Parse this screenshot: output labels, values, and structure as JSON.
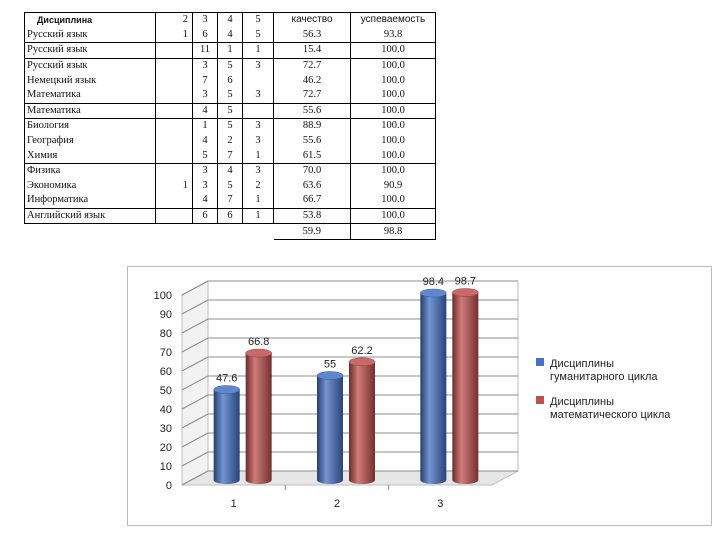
{
  "table": {
    "headers": {
      "discipline": "Дисциплина",
      "g2": "2",
      "g3": "3",
      "g4": "4",
      "g5": "5",
      "quality": "качество",
      "performance": "успеваемость"
    },
    "rows": [
      {
        "name": "Русский язык",
        "g2": "1",
        "g3": "6",
        "g4": "4",
        "g5": "5",
        "quality": "56.3",
        "performance": "93.8"
      },
      {
        "name": "Русский язык",
        "g2": "",
        "g3": "11",
        "g4": "1",
        "g5": "1",
        "quality": "15.4",
        "performance": "100.0"
      },
      {
        "name": "Русский язык",
        "g2": "",
        "g3": "3",
        "g4": "5",
        "g5": "3",
        "quality": "72.7",
        "performance": "100.0"
      },
      {
        "name": "Немецкий язык",
        "g2": "",
        "g3": "7",
        "g4": "6",
        "g5": "",
        "quality": "46.2",
        "performance": "100.0"
      },
      {
        "name": "Математика",
        "g2": "",
        "g3": "3",
        "g4": "5",
        "g5": "3",
        "quality": "72.7",
        "performance": "100.0"
      },
      {
        "name": "Математика",
        "g2": "",
        "g3": "4",
        "g4": "5",
        "g5": "",
        "quality": "55.6",
        "performance": "100.0"
      },
      {
        "name": "Биология",
        "g2": "",
        "g3": "1",
        "g4": "5",
        "g5": "3",
        "quality": "88.9",
        "performance": "100.0"
      },
      {
        "name": "География",
        "g2": "",
        "g3": "4",
        "g4": "2",
        "g5": "3",
        "quality": "55.6",
        "performance": "100.0"
      },
      {
        "name": "Химия",
        "g2": "",
        "g3": "5",
        "g4": "7",
        "g5": "1",
        "quality": "61.5",
        "performance": "100.0"
      },
      {
        "name": "Физика",
        "g2": "",
        "g3": "3",
        "g4": "4",
        "g5": "3",
        "quality": "70.0",
        "performance": "100.0"
      },
      {
        "name": "Экономика",
        "g2": "1",
        "g3": "3",
        "g4": "5",
        "g5": "2",
        "quality": "63.6",
        "performance": "90.9"
      },
      {
        "name": "Информатика",
        "g2": "",
        "g3": "4",
        "g4": "7",
        "g5": "1",
        "quality": "66.7",
        "performance": "100.0"
      },
      {
        "name": "Английский язык",
        "g2": "",
        "g3": "6",
        "g4": "6",
        "g5": "1",
        "quality": "53.8",
        "performance": "100.0"
      }
    ],
    "totals": {
      "quality": "59.9",
      "performance": "98.8"
    }
  },
  "chart_data": {
    "type": "bar",
    "categories": [
      "1",
      "2",
      "3"
    ],
    "series": [
      {
        "name": "Дисциплины гуманитарного цикла",
        "values": [
          47.6,
          55,
          98.4
        ],
        "color": "#4472c4"
      },
      {
        "name": "Дисциплины математического цикла",
        "values": [
          66.8,
          62.2,
          98.7
        ],
        "color": "#c0504d"
      }
    ],
    "data_labels": [
      [
        "47.6",
        "55",
        "98.4"
      ],
      [
        "66.8",
        "62.2",
        "98.7"
      ]
    ],
    "y_ticks": [
      "0",
      "10",
      "20",
      "30",
      "40",
      "50",
      "60",
      "70",
      "80",
      "90",
      "100"
    ],
    "ylim": [
      0,
      100
    ],
    "grid": true,
    "legend": "right",
    "style": "3d-cylinder"
  }
}
